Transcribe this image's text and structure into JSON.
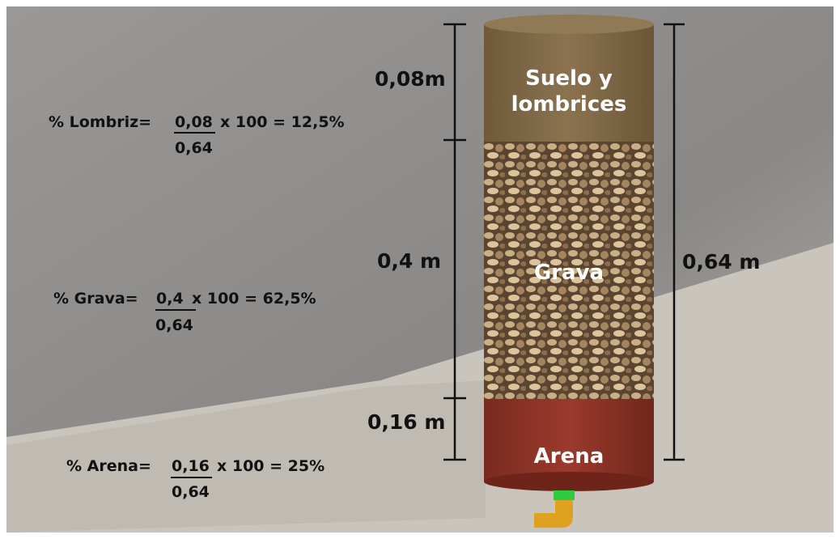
{
  "layers": [
    {
      "label_lines": [
        "Suelo y",
        "lombrices"
      ],
      "height": "0,08m"
    },
    {
      "label_lines": [
        "Grava"
      ],
      "height": "0,4 m"
    },
    {
      "label_lines": [
        "Arena"
      ],
      "height": "0,16 m"
    }
  ],
  "total_height": "0,64 m",
  "formulas": [
    {
      "prefix": "% Lombriz=",
      "numerator": "0,08",
      "rest": "x 100 = 12,5%",
      "denominator": "0,64"
    },
    {
      "prefix": "% Grava=",
      "numerator": "0,4",
      "rest": "x 100 = 62,5%",
      "denominator": "0,64"
    },
    {
      "prefix": "% Arena=",
      "numerator": "0,16",
      "rest": "x 100 = 25%",
      "denominator": "0,64"
    }
  ]
}
